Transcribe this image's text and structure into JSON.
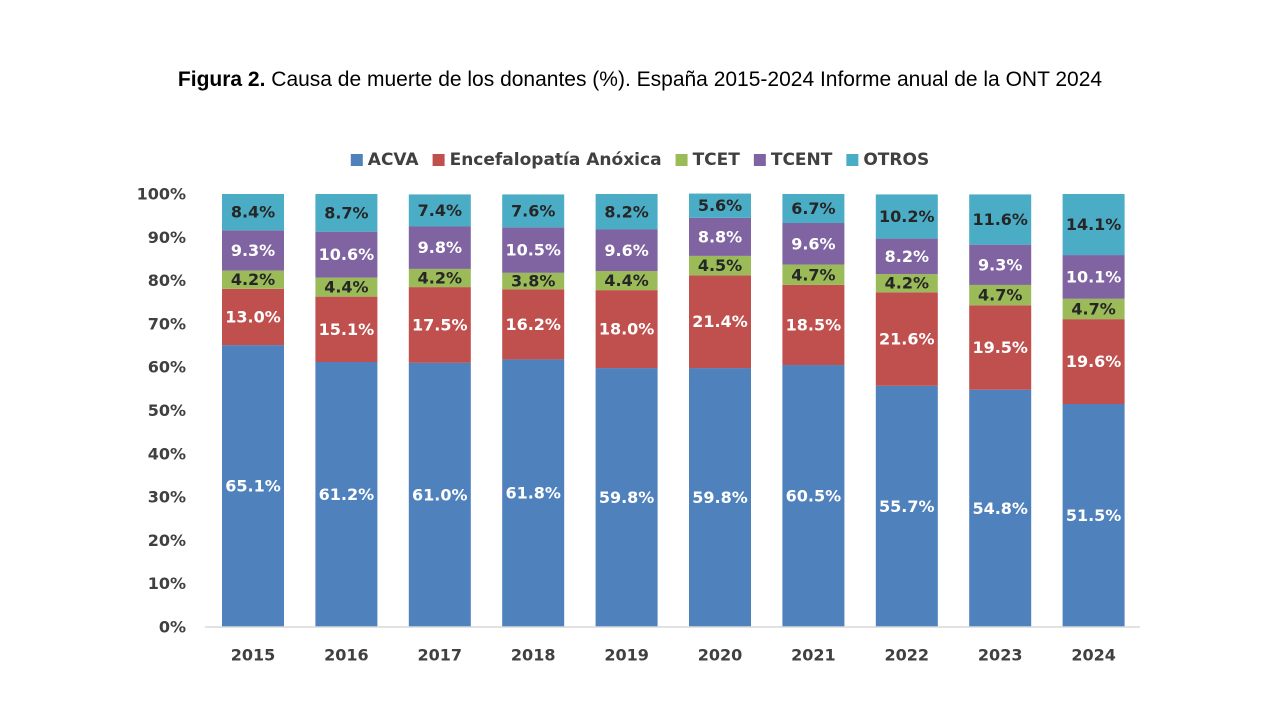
{
  "figure": {
    "title_bold": "Figura 2.",
    "title_rest": " Causa de muerte de los donantes (%). España 2015-2024 Informe anual de la ONT 2024"
  },
  "chart_data": {
    "type": "bar",
    "stacked": true,
    "title": "Figura 2. Causa de muerte de los donantes (%). España 2015-2024 Informe anual de la ONT 2024",
    "categories": [
      "2015",
      "2016",
      "2017",
      "2018",
      "2019",
      "2020",
      "2021",
      "2022",
      "2023",
      "2024"
    ],
    "series": [
      {
        "name": "ACVA",
        "color": "#4f81bd",
        "label_color": "#ffffff",
        "values": [
          65.1,
          61.2,
          61.0,
          61.8,
          59.8,
          59.8,
          60.5,
          55.7,
          54.8,
          51.5
        ],
        "labels": [
          "65.1%",
          "61.2%",
          "61.0%",
          "61.8%",
          "59.8%",
          "59.8%",
          "60.5%",
          "55.7%",
          "54.8%",
          "51.5%"
        ]
      },
      {
        "name": "Encefalopatía Anóxica",
        "color": "#c0504d",
        "label_color": "#ffffff",
        "values": [
          13.0,
          15.1,
          17.5,
          16.2,
          18.0,
          21.4,
          18.5,
          21.6,
          19.5,
          19.6
        ],
        "labels": [
          "13.0%",
          "15.1%",
          "17.5%",
          "16.2%",
          "18.0%",
          "21.4%",
          "18.5%",
          "21.6%",
          "19.5%",
          "19.6%"
        ]
      },
      {
        "name": "TCET",
        "color": "#9bbb59",
        "label_color": "#262626",
        "values": [
          4.2,
          4.4,
          4.2,
          3.8,
          4.4,
          4.5,
          4.7,
          4.2,
          4.7,
          4.7
        ],
        "labels": [
          "4.2%",
          "4.4%",
          "4.2%",
          "3.8%",
          "4.4%",
          "4.5%",
          "4.7%",
          "4.2%",
          "4.7%",
          "4.7%"
        ]
      },
      {
        "name": "TCENT",
        "color": "#8064a2",
        "label_color": "#ffffff",
        "values": [
          9.3,
          10.6,
          9.8,
          10.5,
          9.6,
          8.8,
          9.6,
          8.2,
          9.3,
          10.1
        ],
        "labels": [
          "9.3%",
          "10.6%",
          "9.8%",
          "10.5%",
          "9.6%",
          "8.8%",
          "9.6%",
          "8.2%",
          "9.3%",
          "10.1%"
        ]
      },
      {
        "name": "OTROS",
        "color": "#4bacc6",
        "label_color": "#262626",
        "values": [
          8.4,
          8.7,
          7.4,
          7.6,
          8.2,
          5.6,
          6.7,
          10.2,
          11.6,
          14.1
        ],
        "labels": [
          "8.4%",
          "8.7%",
          "7.4%",
          "7.6%",
          "8.2%",
          "5.6%",
          "6.7%",
          "10.2%",
          "11.6%",
          "14.1%"
        ]
      }
    ],
    "y_ticks": [
      "0%",
      "10%",
      "20%",
      "30%",
      "40%",
      "50%",
      "60%",
      "70%",
      "80%",
      "90%",
      "100%"
    ],
    "ylim": [
      0,
      100
    ],
    "grid": false,
    "legend_position": "top"
  }
}
